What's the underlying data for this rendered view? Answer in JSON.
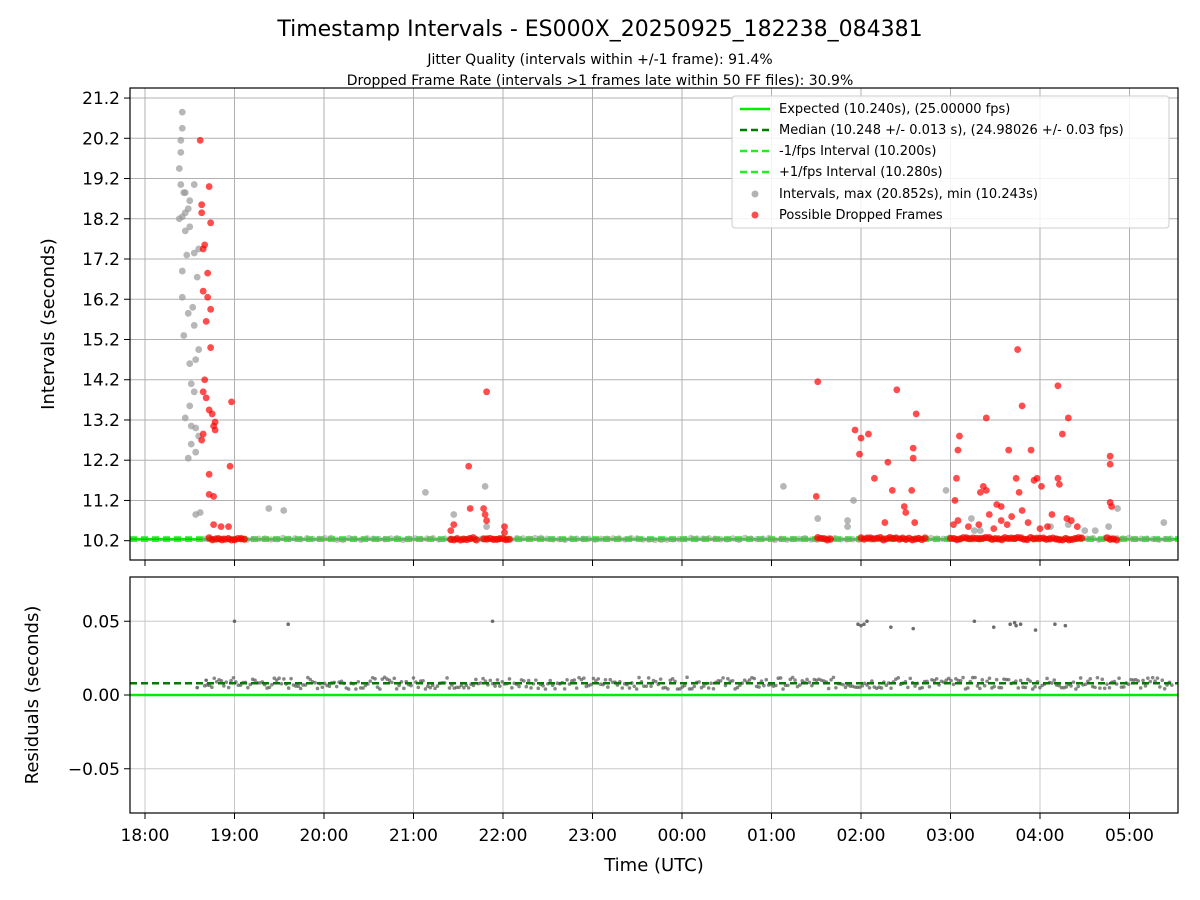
{
  "chart_data": {
    "title": "Timestamp Intervals - ES000X_20250925_182238_084381",
    "subtitle_1": "Jitter Quality (intervals within +/-1 frame): 91.4%",
    "subtitle_2": "Dropped Frame Rate (intervals >1 frames late within 50 FF files): 30.9%",
    "xlabel": "Time (UTC)",
    "x_ticks": [
      "18:00",
      "19:00",
      "20:00",
      "21:00",
      "22:00",
      "23:00",
      "00:00",
      "01:00",
      "02:00",
      "03:00",
      "04:00",
      "05:00"
    ],
    "top_panel": {
      "type": "scatter",
      "ylabel": "Intervals (seconds)",
      "y_ticks": [
        "10.2",
        "11.2",
        "12.2",
        "13.2",
        "14.2",
        "15.2",
        "16.2",
        "17.2",
        "18.2",
        "19.2",
        "20.2",
        "21.2"
      ],
      "ylim": [
        9.72,
        21.45
      ],
      "grid": true,
      "legend_position": "top-right",
      "series": [
        {
          "name": "Expected (10.240s), (25.00000 fps)",
          "style": "solid",
          "color": "#00ee00",
          "y": 10.24
        },
        {
          "name": "Median (10.248 +/- 0.013 s), (24.98026 +/- 0.03 fps)",
          "style": "dashed",
          "color": "#007a00",
          "y": 10.248
        },
        {
          "name": "-1/fps Interval (10.200s)",
          "style": "dashed",
          "color": "#22ee22",
          "y": 10.2
        },
        {
          "name": "+1/fps Interval (10.280s)",
          "style": "dashed",
          "color": "#22ee22",
          "y": 10.28
        },
        {
          "name": "Intervals, max (20.852s), min (10.243s)",
          "style": "marker",
          "color": "#999999",
          "points": [
            [
              "18:25",
              20.85
            ],
            [
              "18:25",
              20.45
            ],
            [
              "18:24",
              20.15
            ],
            [
              "18:24",
              19.85
            ],
            [
              "18:23",
              19.45
            ],
            [
              "18:24",
              19.05
            ],
            [
              "18:26",
              18.85
            ],
            [
              "18:27",
              18.85
            ],
            [
              "18:33",
              19.05
            ],
            [
              "18:30",
              18.65
            ],
            [
              "18:29",
              18.45
            ],
            [
              "18:27",
              18.35
            ],
            [
              "18:25",
              18.25
            ],
            [
              "18:23",
              18.2
            ],
            [
              "18:30",
              18.0
            ],
            [
              "18:27",
              17.9
            ],
            [
              "18:36",
              17.45
            ],
            [
              "18:33",
              17.35
            ],
            [
              "18:28",
              17.3
            ],
            [
              "18:25",
              16.9
            ],
            [
              "18:35",
              16.75
            ],
            [
              "18:25",
              16.25
            ],
            [
              "18:32",
              16.0
            ],
            [
              "18:29",
              15.85
            ],
            [
              "18:33",
              15.55
            ],
            [
              "18:26",
              15.3
            ],
            [
              "18:36",
              14.95
            ],
            [
              "18:34",
              14.7
            ],
            [
              "18:30",
              14.6
            ],
            [
              "18:31",
              14.1
            ],
            [
              "18:33",
              13.9
            ],
            [
              "18:30",
              13.55
            ],
            [
              "18:27",
              13.25
            ],
            [
              "18:31",
              13.05
            ],
            [
              "18:34",
              13.0
            ],
            [
              "18:36",
              12.8
            ],
            [
              "18:31",
              12.6
            ],
            [
              "18:34",
              12.4
            ],
            [
              "18:29",
              12.25
            ],
            [
              "18:34",
              10.85
            ],
            [
              "18:37",
              10.9
            ],
            [
              "19:23",
              11.0
            ],
            [
              "19:33",
              10.95
            ],
            [
              "21:08",
              11.4
            ],
            [
              "21:27",
              10.85
            ],
            [
              "21:48",
              11.55
            ],
            [
              "21:49",
              10.55
            ],
            [
              "01:08",
              11.55
            ],
            [
              "01:31",
              10.75
            ],
            [
              "01:51",
              10.7
            ],
            [
              "01:51",
              10.55
            ],
            [
              "01:55",
              11.2
            ],
            [
              "02:57",
              11.45
            ],
            [
              "03:14",
              10.75
            ],
            [
              "03:16",
              10.45
            ],
            [
              "03:20",
              10.45
            ],
            [
              "04:07",
              10.55
            ],
            [
              "04:19",
              10.6
            ],
            [
              "04:30",
              10.45
            ],
            [
              "04:37",
              10.45
            ],
            [
              "04:46",
              10.55
            ],
            [
              "04:52",
              11.0
            ],
            [
              "05:23",
              10.65
            ]
          ]
        },
        {
          "name": "Possible Dropped Frames",
          "style": "marker",
          "color": "#ff0000",
          "points": [
            [
              "18:37",
              20.15
            ],
            [
              "18:43",
              19.0
            ],
            [
              "18:38",
              18.55
            ],
            [
              "18:38",
              18.35
            ],
            [
              "18:44",
              18.1
            ],
            [
              "18:40",
              17.55
            ],
            [
              "18:39",
              17.45
            ],
            [
              "18:42",
              16.85
            ],
            [
              "18:39",
              16.4
            ],
            [
              "18:42",
              16.25
            ],
            [
              "18:44",
              15.95
            ],
            [
              "18:41",
              15.65
            ],
            [
              "18:44",
              15.0
            ],
            [
              "18:40",
              14.2
            ],
            [
              "18:39",
              13.9
            ],
            [
              "18:41",
              13.75
            ],
            [
              "18:43",
              13.45
            ],
            [
              "18:45",
              13.35
            ],
            [
              "18:47",
              13.15
            ],
            [
              "18:46",
              13.05
            ],
            [
              "18:47",
              12.95
            ],
            [
              "18:39",
              12.85
            ],
            [
              "18:38",
              12.7
            ],
            [
              "18:43",
              11.85
            ],
            [
              "18:43",
              11.35
            ],
            [
              "18:46",
              11.3
            ],
            [
              "18:46",
              10.6
            ],
            [
              "18:51",
              10.55
            ],
            [
              "18:56",
              10.55
            ],
            [
              "18:58",
              13.65
            ],
            [
              "18:57",
              12.05
            ],
            [
              "21:37",
              12.05
            ],
            [
              "21:38",
              11.0
            ],
            [
              "21:49",
              13.9
            ],
            [
              "21:47",
              11.0
            ],
            [
              "21:48",
              10.85
            ],
            [
              "21:49",
              10.7
            ],
            [
              "21:27",
              10.6
            ],
            [
              "21:25",
              10.45
            ],
            [
              "22:01",
              10.55
            ],
            [
              "22:01",
              10.4
            ],
            [
              "01:31",
              14.15
            ],
            [
              "01:30",
              11.3
            ],
            [
              "01:56",
              12.95
            ],
            [
              "02:00",
              12.75
            ],
            [
              "02:05",
              12.85
            ],
            [
              "01:59",
              12.35
            ],
            [
              "02:09",
              11.75
            ],
            [
              "02:18",
              12.15
            ],
            [
              "02:21",
              11.45
            ],
            [
              "02:24",
              13.95
            ],
            [
              "02:29",
              11.05
            ],
            [
              "02:30",
              10.9
            ],
            [
              "02:37",
              13.35
            ],
            [
              "02:35",
              12.5
            ],
            [
              "02:35",
              12.25
            ],
            [
              "02:34",
              11.45
            ],
            [
              "02:16",
              10.65
            ],
            [
              "02:36",
              10.65
            ],
            [
              "03:06",
              12.8
            ],
            [
              "03:05",
              12.45
            ],
            [
              "03:04",
              11.75
            ],
            [
              "03:03",
              11.2
            ],
            [
              "03:24",
              13.25
            ],
            [
              "03:20",
              11.4
            ],
            [
              "03:22",
              11.55
            ],
            [
              "03:24",
              11.45
            ],
            [
              "03:31",
              11.1
            ],
            [
              "03:34",
              11.05
            ],
            [
              "03:39",
              12.45
            ],
            [
              "03:45",
              14.95
            ],
            [
              "03:48",
              13.55
            ],
            [
              "03:44",
              11.75
            ],
            [
              "03:46",
              11.4
            ],
            [
              "03:48",
              10.95
            ],
            [
              "03:54",
              12.45
            ],
            [
              "03:56",
              11.7
            ],
            [
              "03:58",
              11.75
            ],
            [
              "04:01",
              11.55
            ],
            [
              "04:12",
              14.05
            ],
            [
              "04:12",
              11.75
            ],
            [
              "04:13",
              11.6
            ],
            [
              "04:15",
              12.85
            ],
            [
              "04:19",
              13.25
            ],
            [
              "04:18",
              10.75
            ],
            [
              "04:47",
              12.3
            ],
            [
              "04:47",
              12.1
            ],
            [
              "04:47",
              11.15
            ],
            [
              "04:48",
              11.05
            ],
            [
              "03:02",
              10.6
            ],
            [
              "03:05",
              10.7
            ],
            [
              "03:12",
              10.55
            ],
            [
              "03:19",
              10.6
            ],
            [
              "03:26",
              10.85
            ],
            [
              "03:29",
              10.5
            ],
            [
              "03:34",
              10.7
            ],
            [
              "03:38",
              10.6
            ],
            [
              "03:41",
              10.8
            ],
            [
              "03:52",
              10.65
            ],
            [
              "04:00",
              10.5
            ],
            [
              "04:05",
              10.55
            ],
            [
              "04:08",
              10.85
            ],
            [
              "04:21",
              10.7
            ],
            [
              "04:25",
              10.55
            ]
          ]
        }
      ]
    },
    "bottom_panel": {
      "type": "scatter",
      "ylabel": "Residuals (seconds)",
      "y_ticks": [
        "0.05",
        "0.00",
        "−0.05"
      ],
      "ylim": [
        -0.08,
        0.08
      ],
      "grid": true,
      "series": [
        {
          "name": "",
          "style": "solid",
          "color": "#00ee00",
          "y": 0.0
        },
        {
          "name": "",
          "style": "dashed",
          "color": "#007a00",
          "y": 0.008
        },
        {
          "name": "",
          "style": "marker",
          "color": "#555555",
          "band": {
            "center": 0.008,
            "spread": 0.004,
            "x_start": "18:40",
            "x_end": "05:30"
          },
          "points": [
            [
              "18:35",
              0.005
            ],
            [
              "18:41",
              0.01
            ],
            [
              "19:00",
              0.05
            ],
            [
              "19:36",
              0.048
            ],
            [
              "21:53",
              0.05
            ],
            [
              "01:58",
              0.048
            ],
            [
              "02:00",
              0.047
            ],
            [
              "02:02",
              0.048
            ],
            [
              "02:04",
              0.05
            ],
            [
              "02:20",
              0.046
            ],
            [
              "02:35",
              0.045
            ],
            [
              "03:16",
              0.05
            ],
            [
              "03:29",
              0.046
            ],
            [
              "03:40",
              0.048
            ],
            [
              "03:43",
              0.049
            ],
            [
              "03:44",
              0.047
            ],
            [
              "03:47",
              0.048
            ],
            [
              "03:57",
              0.044
            ],
            [
              "04:10",
              0.048
            ],
            [
              "04:17",
              0.047
            ]
          ]
        }
      ]
    }
  }
}
